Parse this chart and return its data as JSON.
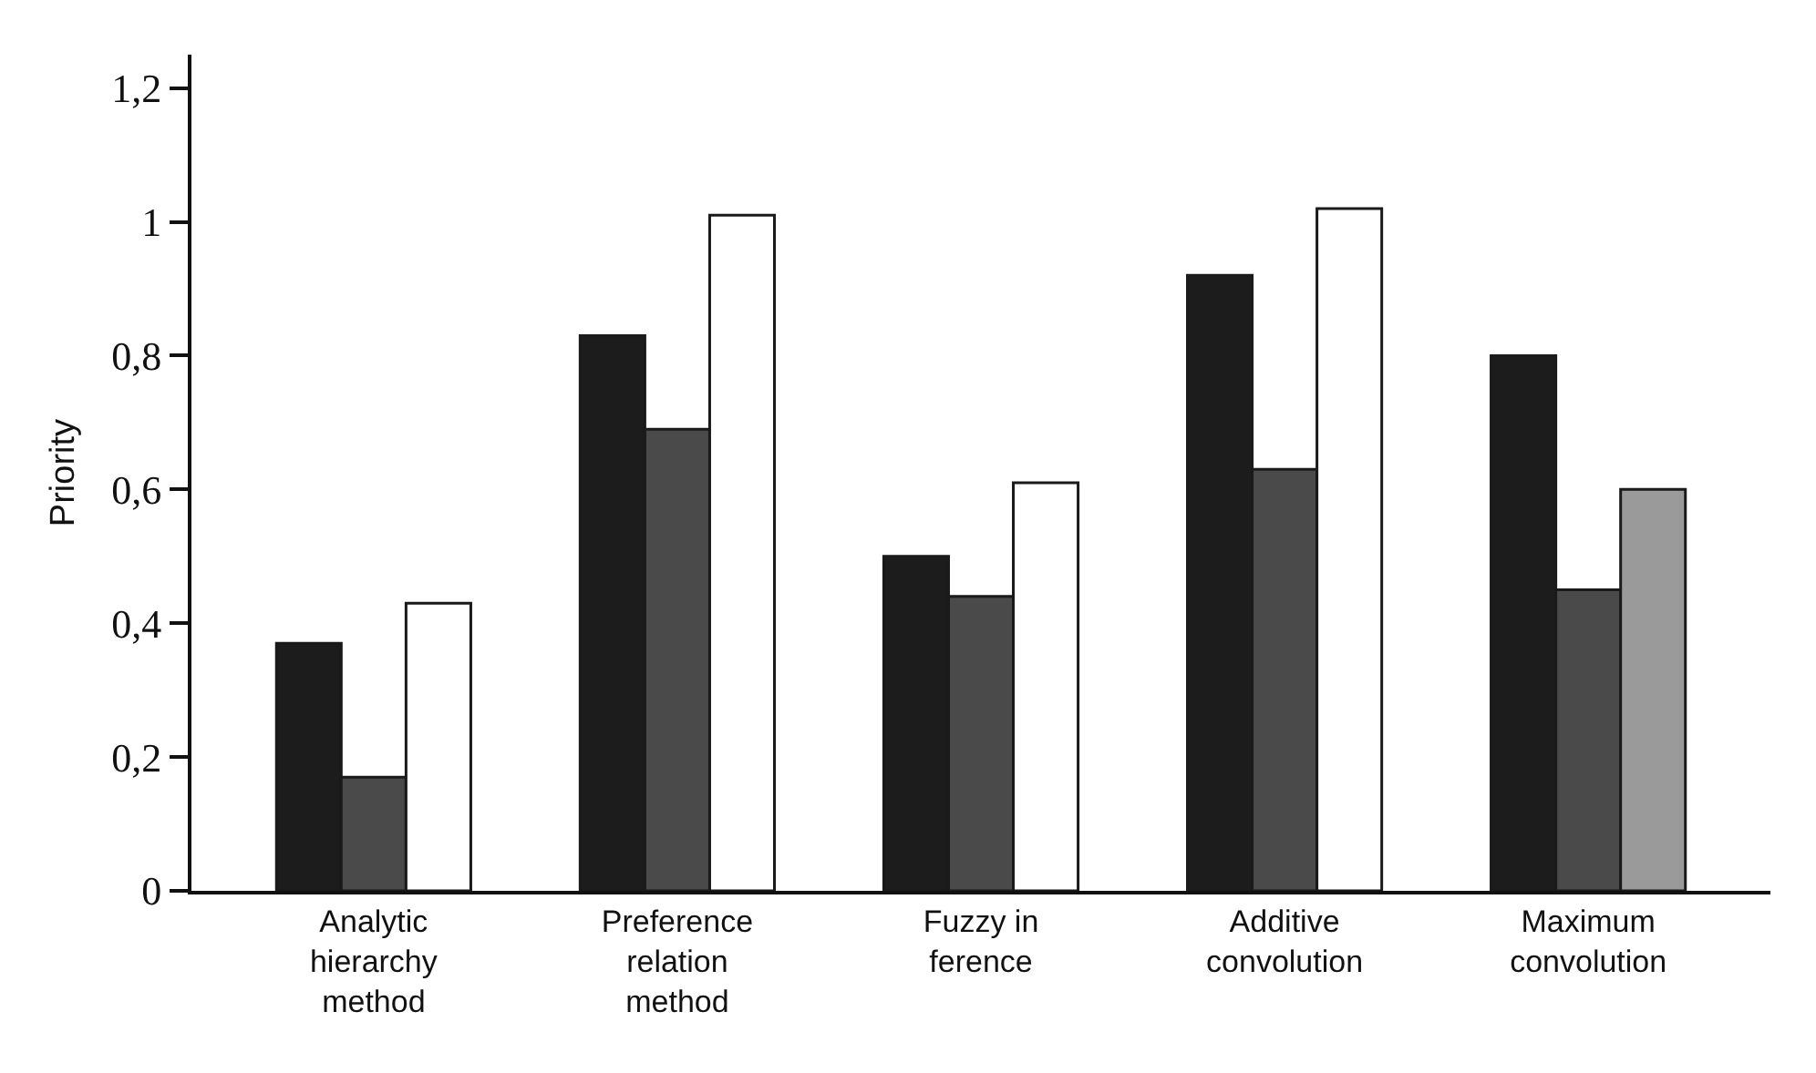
{
  "chart_data": {
    "type": "bar",
    "ylabel": "Priority",
    "categories": [
      "Analytic\nhierarchy\nmethod",
      "Preference\nrelation\nmethod",
      "Fuzzy in\nference",
      "Additive\nconvolution",
      "Maximum\nconvolution"
    ],
    "series": [
      {
        "color": "#1c1c1c",
        "values": [
          0.37,
          0.83,
          0.5,
          0.92,
          0.8
        ]
      },
      {
        "color": "#4a4a4a",
        "values": [
          0.17,
          0.69,
          0.44,
          0.63,
          0.45
        ]
      },
      {
        "colors": [
          "#ffffff",
          "#ffffff",
          "#ffffff",
          "#ffffff",
          "#9a9a9a"
        ],
        "values": [
          0.43,
          1.01,
          0.61,
          1.02,
          0.6
        ]
      }
    ],
    "ylim": [
      0,
      1.25
    ],
    "yticks": [
      0,
      {
        "value": 0.2,
        "label": "0,2"
      },
      {
        "value": 0.4,
        "label": "0,4"
      },
      {
        "value": 0.6,
        "label": "0,6"
      },
      {
        "value": 0.8,
        "label": "0,8"
      },
      1,
      {
        "value": 1.2,
        "label": "1,2"
      }
    ],
    "grid": false
  }
}
